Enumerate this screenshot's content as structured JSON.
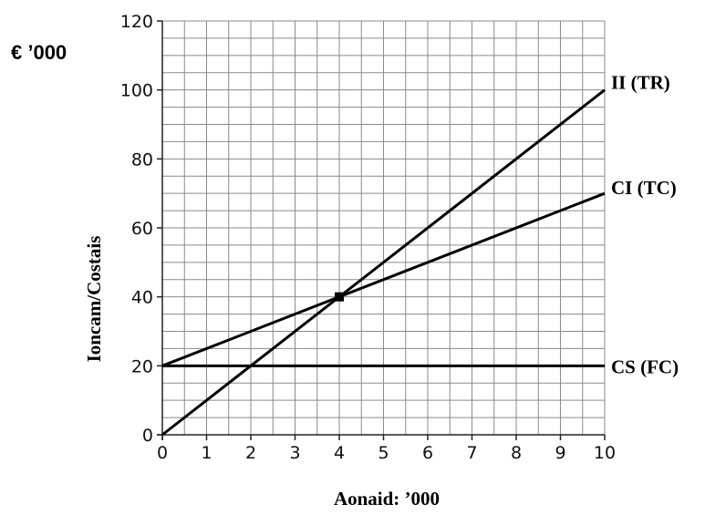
{
  "chart_data": {
    "type": "line",
    "xlabel": "Aonaid: ’000",
    "ylabel": "Ioncam/Costais",
    "y_unit": "€  ’000",
    "xlim": [
      0,
      10
    ],
    "ylim": [
      0,
      120
    ],
    "x_ticks": [
      "0",
      "1",
      "2",
      "3",
      "4",
      "5",
      "6",
      "7",
      "8",
      "9",
      "10"
    ],
    "y_ticks": [
      "0",
      "20",
      "40",
      "60",
      "80",
      "100",
      "120"
    ],
    "grid": true,
    "x": [
      0,
      10
    ],
    "series": [
      {
        "name": "II (TR)",
        "values": [
          0,
          100
        ]
      },
      {
        "name": "CI (TC)",
        "values": [
          20,
          70
        ]
      },
      {
        "name": "CS (FC)",
        "values": [
          20,
          20
        ]
      }
    ],
    "annotations": [
      {
        "type": "marker",
        "x": 4,
        "y": 40
      }
    ],
    "colors": {
      "line": "#000000",
      "grid": "#8a8a8a",
      "background": "#ffffff"
    }
  }
}
